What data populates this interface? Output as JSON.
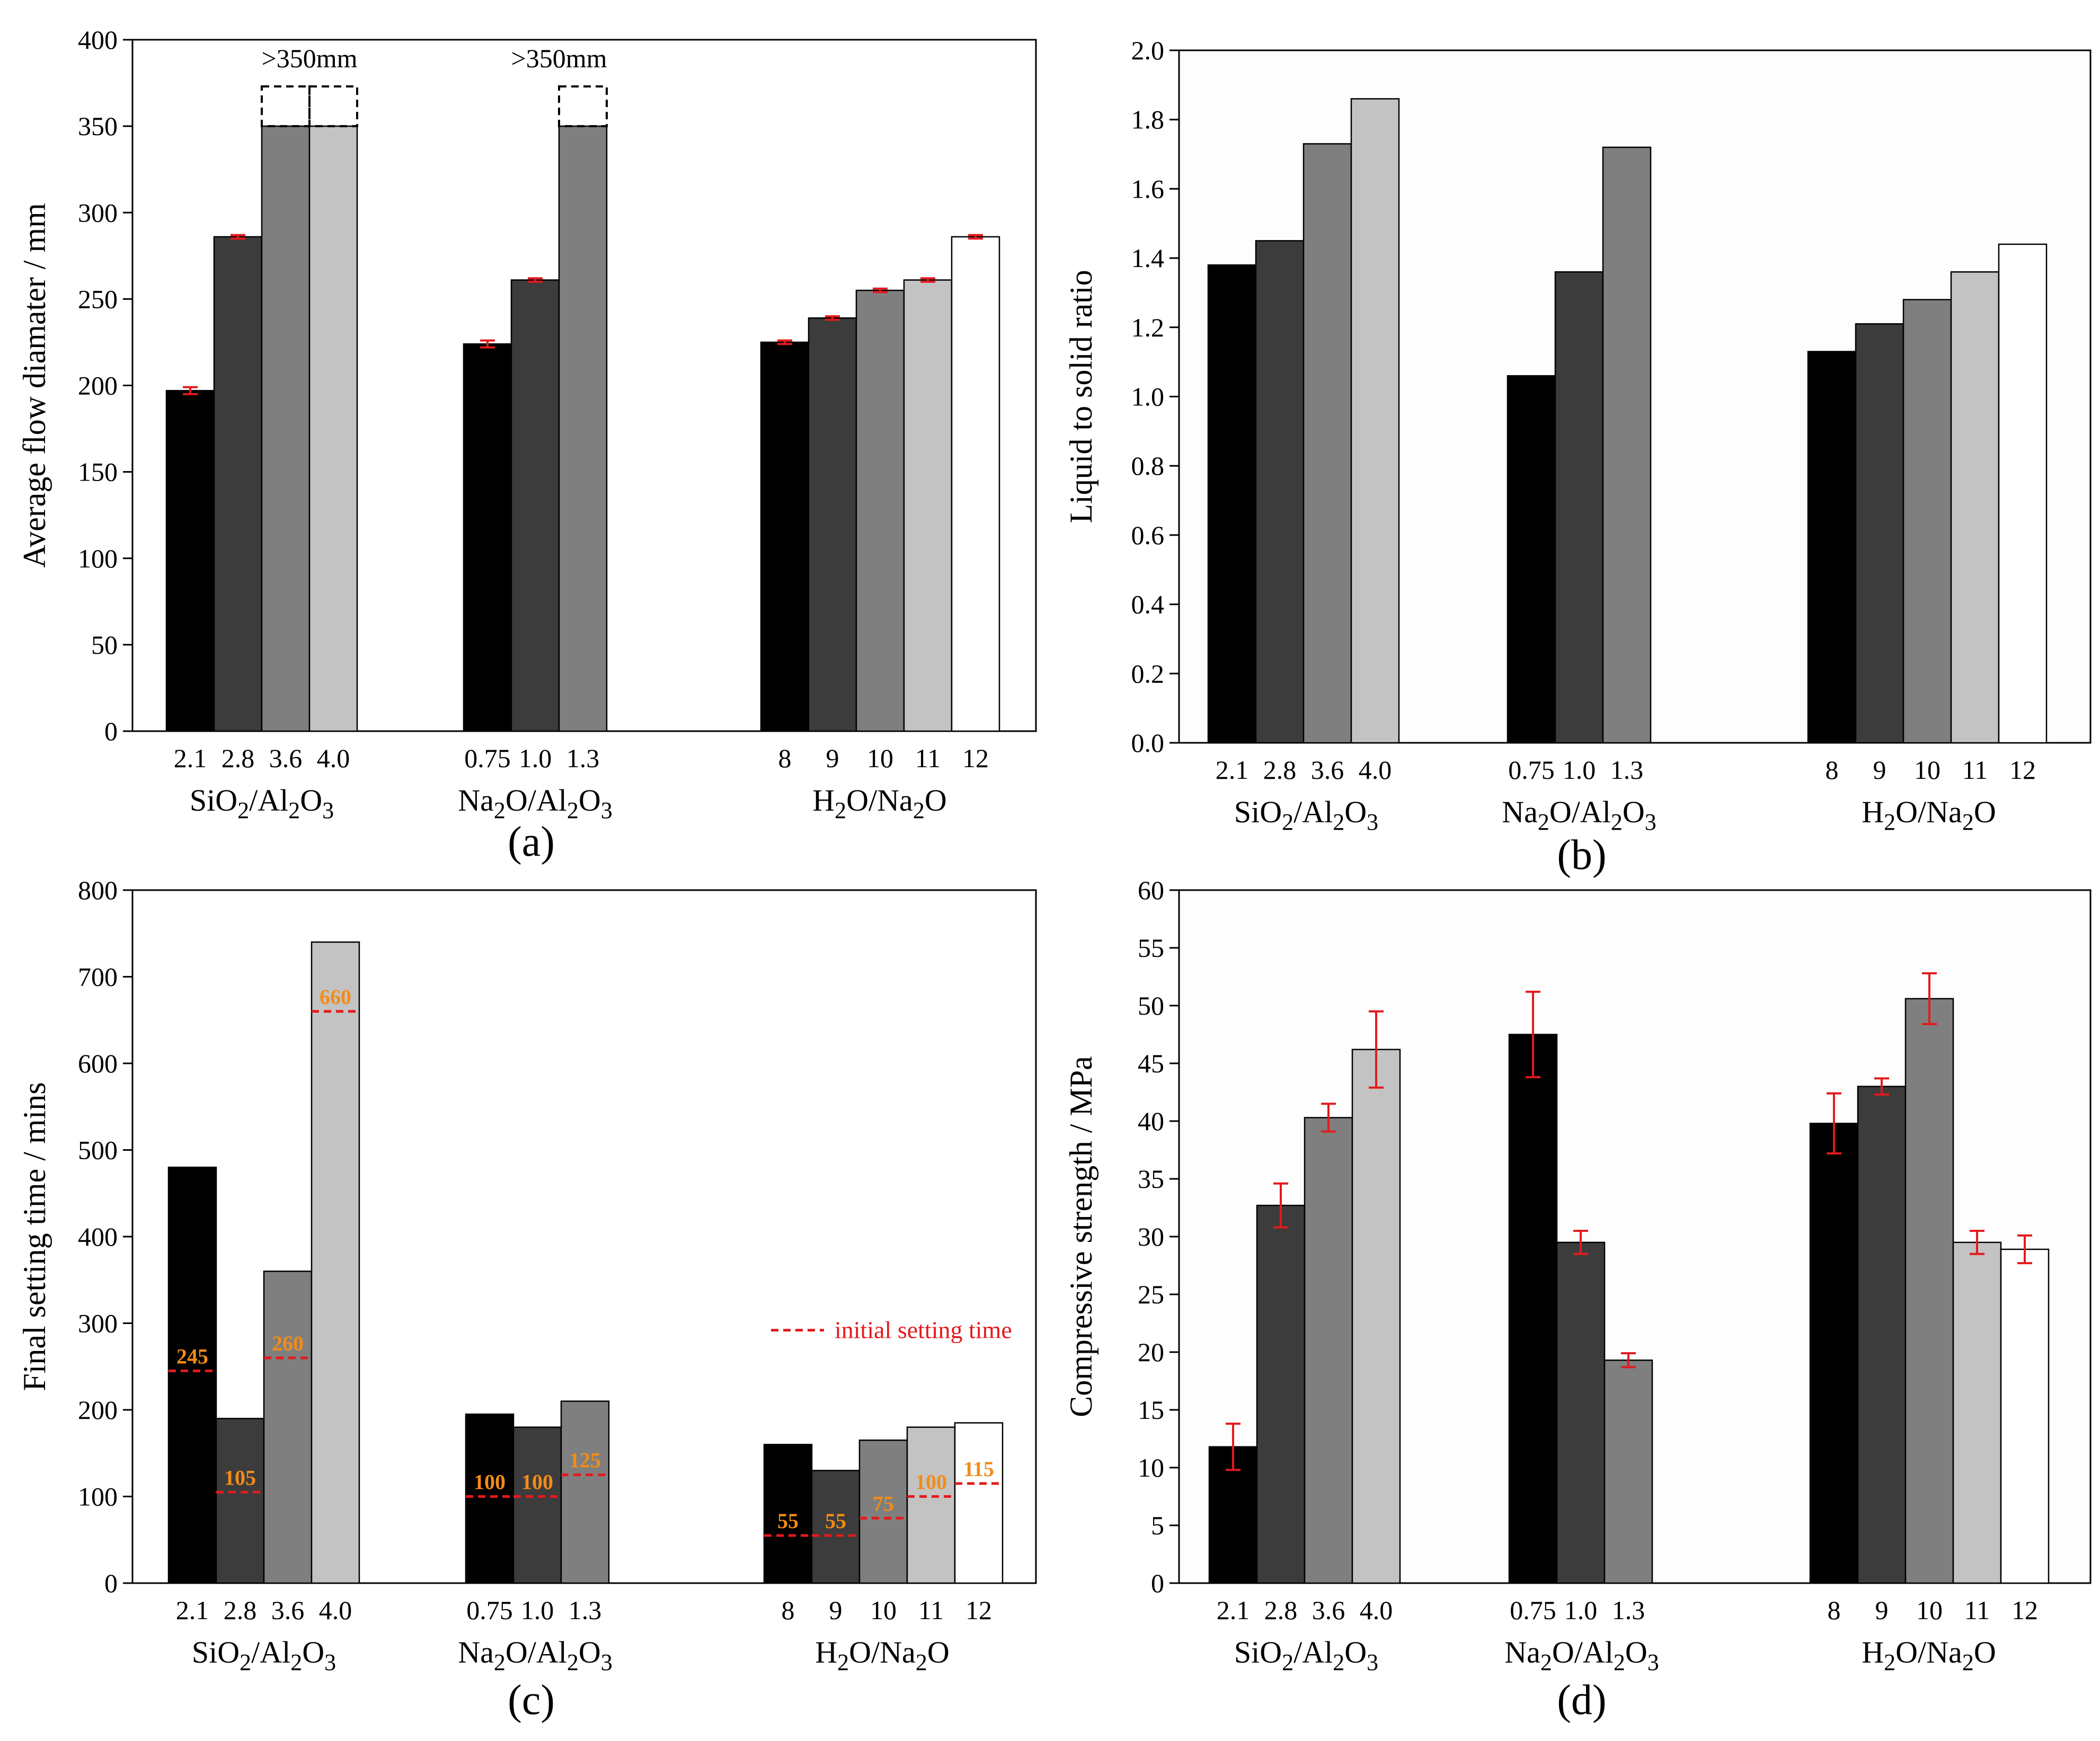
{
  "bar_colors": [
    "#000000",
    "#3c3c3c",
    "#7f7f7f",
    "#c3c3c3",
    "#ffffff"
  ],
  "error_color": "#e31a1c",
  "initial_line_color": "#e31a1c",
  "initial_label_color": "#f28c18",
  "panels": [
    {
      "label": "(a)",
      "ylabel": "Average flow diamater / mm",
      "yticks": [
        "0",
        "50",
        "100",
        "150",
        "200",
        "250",
        "300",
        "350",
        "400"
      ],
      "groups": [
        {
          "xlabel": "SiO2/Al2O3",
          "ticks": [
            "2.1",
            "2.8",
            "3.6",
            "4.0"
          ]
        },
        {
          "xlabel": "Na2O/Al2O3",
          "ticks": [
            "0.75",
            "1.0",
            "1.3"
          ]
        },
        {
          "xlabel": "H2O/Na2O",
          "ticks": [
            "8",
            "9",
            "10",
            "11",
            "12"
          ]
        }
      ],
      "annotations": [
        ">350mm",
        ">350mm"
      ]
    },
    {
      "label": "(b)",
      "ylabel": "Liquid to solid ratio",
      "yticks": [
        "0.0",
        "0.2",
        "0.4",
        "0.6",
        "0.8",
        "1.0",
        "1.2",
        "1.4",
        "1.6",
        "1.8",
        "2.0"
      ],
      "groups": [
        {
          "xlabel": "SiO2/Al2O3",
          "ticks": [
            "2.1",
            "2.8",
            "3.6",
            "4.0"
          ]
        },
        {
          "xlabel": "Na2O/Al2O3",
          "ticks": [
            "0.75",
            "1.0",
            "1.3"
          ]
        },
        {
          "xlabel": "H2O/Na2O",
          "ticks": [
            "8",
            "9",
            "10",
            "11",
            "12"
          ]
        }
      ]
    },
    {
      "label": "(c)",
      "ylabel": "Final setting time / mins",
      "yticks": [
        "0",
        "100",
        "200",
        "300",
        "400",
        "500",
        "600",
        "700",
        "800"
      ],
      "groups": [
        {
          "xlabel": "SiO2/Al2O3",
          "ticks": [
            "2.1",
            "2.8",
            "3.6",
            "4.0"
          ]
        },
        {
          "xlabel": "Na2O/Al2O3",
          "ticks": [
            "0.75",
            "1.0",
            "1.3"
          ]
        },
        {
          "xlabel": "H2O/Na2O",
          "ticks": [
            "8",
            "9",
            "10",
            "11",
            "12"
          ]
        }
      ],
      "legend": "initial setting time"
    },
    {
      "label": "(d)",
      "ylabel": "Compressive strength / MPa",
      "yticks": [
        "0",
        "5",
        "10",
        "15",
        "20",
        "25",
        "30",
        "35",
        "40",
        "45",
        "50",
        "55",
        "60"
      ],
      "groups": [
        {
          "xlabel": "SiO2/Al2O3",
          "ticks": [
            "2.1",
            "2.8",
            "3.6",
            "4.0"
          ]
        },
        {
          "xlabel": "Na2O/Al2O3",
          "ticks": [
            "0.75",
            "1.0",
            "1.3"
          ]
        },
        {
          "xlabel": "H2O/Na2O",
          "ticks": [
            "8",
            "9",
            "10",
            "11",
            "12"
          ]
        }
      ]
    }
  ],
  "chart_data": [
    {
      "panel": "(a)",
      "type": "bar",
      "ylabel": "Average flow diamater / mm",
      "ylim": [
        0,
        400
      ],
      "grid": false,
      "groups": [
        {
          "name": "SiO2/Al2O3",
          "categories": [
            "2.1",
            "2.8",
            "3.6",
            "4.0"
          ],
          "values": [
            197,
            286,
            350,
            350
          ],
          "errors": [
            2,
            1,
            0,
            0
          ],
          "exceeds": [
            false,
            false,
            true,
            true
          ]
        },
        {
          "name": "Na2O/Al2O3",
          "categories": [
            "0.75",
            "1.0",
            "1.3"
          ],
          "values": [
            224,
            261,
            350
          ],
          "errors": [
            2,
            1,
            0
          ],
          "exceeds": [
            false,
            false,
            true
          ]
        },
        {
          "name": "H2O/Na2O",
          "categories": [
            "8",
            "9",
            "10",
            "11",
            "12"
          ],
          "values": [
            225,
            239,
            255,
            261,
            286
          ],
          "errors": [
            1,
            1,
            1,
            1,
            1
          ],
          "exceeds": [
            false,
            false,
            false,
            false,
            false
          ]
        }
      ]
    },
    {
      "panel": "(b)",
      "type": "bar",
      "ylabel": "Liquid to solid ratio",
      "ylim": [
        0,
        2.0
      ],
      "grid": false,
      "groups": [
        {
          "name": "SiO2/Al2O3",
          "categories": [
            "2.1",
            "2.8",
            "3.6",
            "4.0"
          ],
          "values": [
            1.38,
            1.45,
            1.73,
            1.86
          ]
        },
        {
          "name": "Na2O/Al2O3",
          "categories": [
            "0.75",
            "1.0",
            "1.3"
          ],
          "values": [
            1.06,
            1.36,
            1.72
          ]
        },
        {
          "name": "H2O/Na2O",
          "categories": [
            "8",
            "9",
            "10",
            "11",
            "12"
          ],
          "values": [
            1.13,
            1.21,
            1.28,
            1.36,
            1.44
          ]
        }
      ]
    },
    {
      "panel": "(c)",
      "type": "bar",
      "ylabel": "Final setting time / mins",
      "ylim": [
        0,
        800
      ],
      "grid": false,
      "legend_position": "right",
      "groups": [
        {
          "name": "SiO2/Al2O3",
          "categories": [
            "2.1",
            "2.8",
            "3.6",
            "4.0"
          ],
          "values": [
            480,
            190,
            360,
            740
          ],
          "initial": [
            245,
            105,
            260,
            660
          ]
        },
        {
          "name": "Na2O/Al2O3",
          "categories": [
            "0.75",
            "1.0",
            "1.3"
          ],
          "values": [
            195,
            180,
            210
          ],
          "initial": [
            100,
            100,
            125
          ]
        },
        {
          "name": "H2O/Na2O",
          "categories": [
            "8",
            "9",
            "10",
            "11",
            "12"
          ],
          "values": [
            160,
            130,
            165,
            180,
            185
          ],
          "initial": [
            55,
            55,
            75,
            100,
            115
          ]
        }
      ]
    },
    {
      "panel": "(d)",
      "type": "bar",
      "ylabel": "Compressive strength / MPa",
      "ylim": [
        0,
        60
      ],
      "grid": false,
      "groups": [
        {
          "name": "SiO2/Al2O3",
          "categories": [
            "2.1",
            "2.8",
            "3.6",
            "4.0"
          ],
          "values": [
            11.8,
            32.7,
            40.3,
            46.2
          ],
          "errors": [
            2.0,
            1.9,
            1.2,
            3.3
          ]
        },
        {
          "name": "Na2O/Al2O3",
          "categories": [
            "0.75",
            "1.0",
            "1.3"
          ],
          "values": [
            47.5,
            29.5,
            19.3
          ],
          "errors": [
            3.7,
            1.0,
            0.6
          ]
        },
        {
          "name": "H2O/Na2O",
          "categories": [
            "8",
            "9",
            "10",
            "11",
            "12"
          ],
          "values": [
            39.8,
            43.0,
            50.6,
            29.5,
            28.9
          ],
          "errors": [
            2.6,
            0.7,
            2.2,
            1.0,
            1.2
          ]
        }
      ]
    }
  ]
}
